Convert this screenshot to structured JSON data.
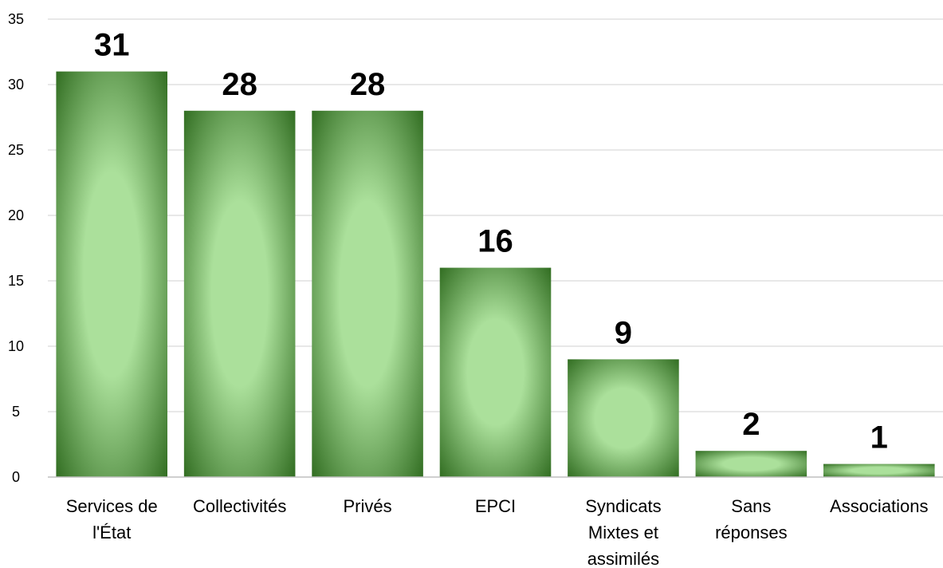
{
  "chart_data": {
    "type": "bar",
    "categories": [
      "Services de l'État",
      "Collectivités",
      "Privés",
      "EPCI",
      "Syndicats Mixtes et assimilés",
      "Sans réponses",
      "Associations"
    ],
    "category_label_lines": [
      [
        "Services de",
        "l'État"
      ],
      [
        "Collectivités"
      ],
      [
        "Privés"
      ],
      [
        "EPCI"
      ],
      [
        "Syndicats",
        "Mixtes et",
        "assimilés"
      ],
      [
        "Sans",
        "réponses"
      ],
      [
        "Associations"
      ]
    ],
    "values": [
      31,
      28,
      28,
      16,
      9,
      2,
      1
    ],
    "data_labels": [
      "31",
      "28",
      "28",
      "16",
      "9",
      "2",
      "1"
    ],
    "ylim": [
      0,
      35
    ],
    "yticks": [
      0,
      5,
      10,
      15,
      20,
      25,
      30,
      35
    ],
    "ytick_labels": [
      "0",
      "5",
      "10",
      "15",
      "20",
      "25",
      "30",
      "35"
    ],
    "title": "",
    "xlabel": "",
    "ylabel": "",
    "grid": true,
    "legend": "none",
    "colors": {
      "bar_center": "#abe09b",
      "bar_edge": "#2e6a1e",
      "grid": "#d9d9d9",
      "axis": "#bfbfbf",
      "text": "#000000"
    }
  }
}
